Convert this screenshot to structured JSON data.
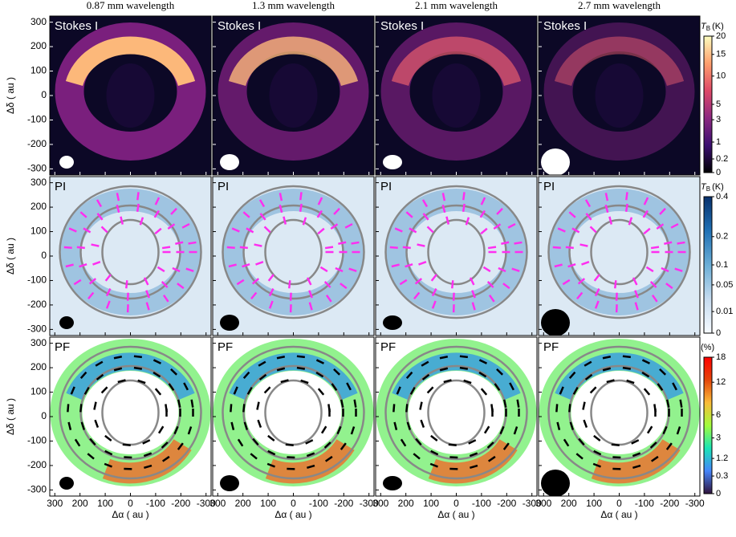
{
  "chart_data": {
    "type": "image-grid",
    "columns": [
      "0.87 mm wavelength",
      "1.3 mm wavelength",
      "2.1 mm wavelength",
      "2.7 mm wavelength"
    ],
    "xlabel": "Δα ( au )",
    "ylabel": "Δδ ( au )",
    "xlim": [
      320,
      -320
    ],
    "ylim": [
      -325,
      325
    ],
    "xticks": [
      300,
      200,
      100,
      0,
      -100,
      -200,
      -300
    ],
    "yticks": [
      300,
      200,
      100,
      0,
      -100,
      -200,
      -300
    ],
    "rows": [
      {
        "label": "Stokes I",
        "colorbar": {
          "symbol": "T",
          "subscript": "B",
          "unit": "(K)",
          "scale": "sqrt",
          "clim": [
            0,
            20
          ],
          "ticks": [
            0,
            0.2,
            1,
            3,
            5,
            10,
            15,
            20
          ],
          "colors": [
            "#000004",
            "#3b0f70",
            "#8c2981",
            "#de4968",
            "#fe9f6d",
            "#fcfdbf"
          ]
        }
      },
      {
        "label": "PI",
        "colorbar": {
          "symbol": "T",
          "subscript": "B",
          "unit": "(K)",
          "scale": "sqrt",
          "clim": [
            0,
            0.4
          ],
          "ticks": [
            0,
            0.01,
            0.05,
            0.1,
            0.2,
            0.4
          ],
          "colors": [
            "#f7fbff",
            "#c6dbef",
            "#6baed6",
            "#2171b5",
            "#08306b"
          ]
        }
      },
      {
        "label": "PF",
        "colorbar": {
          "unit": "(%)",
          "scale": "sqrt",
          "clim": [
            0,
            18
          ],
          "ticks": [
            0,
            0.3,
            1.2,
            3,
            6,
            12,
            18
          ],
          "colors": [
            "#30123b",
            "#4686fb",
            "#1ae4b6",
            "#a2fc3c",
            "#fabb39",
            "#e4460a",
            "#ff0000"
          ]
        }
      }
    ]
  }
}
